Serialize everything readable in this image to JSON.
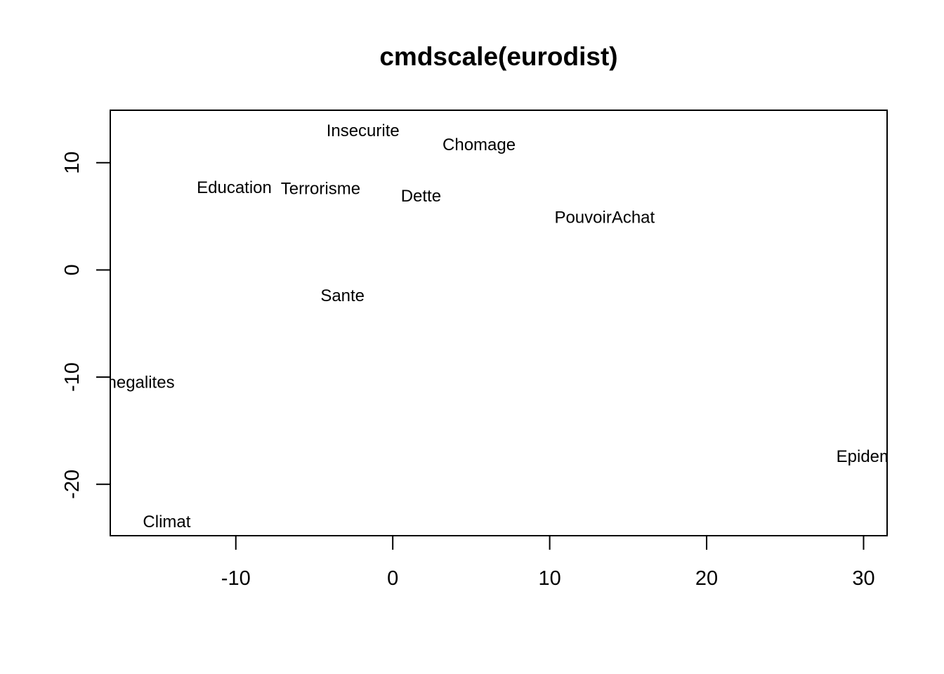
{
  "chart_data": {
    "type": "scatter",
    "title": "cmdscale(eurodist)",
    "xlabel": "",
    "ylabel": "",
    "xlim": [
      -18,
      31.5
    ],
    "ylim": [
      -24.8,
      14.9
    ],
    "x_ticks": [
      -10,
      0,
      10,
      20,
      30
    ],
    "x_tick_labels": [
      "-10",
      "0",
      "10",
      "20",
      "30"
    ],
    "y_ticks": [
      -20,
      -10,
      0,
      10
    ],
    "y_tick_labels": [
      "-20",
      "-10",
      "0",
      "10"
    ],
    "markers": "text",
    "points": [
      {
        "label": "Insecurite",
        "x": -1.9,
        "y": 13.0
      },
      {
        "label": "Chomage",
        "x": 5.5,
        "y": 11.7
      },
      {
        "label": "Education",
        "x": -10.1,
        "y": 7.7
      },
      {
        "label": "Terrorisme",
        "x": -4.6,
        "y": 7.6
      },
      {
        "label": "Dette",
        "x": 1.8,
        "y": 6.9
      },
      {
        "label": "PouvoirAchat",
        "x": 13.5,
        "y": 4.9
      },
      {
        "label": "Sante",
        "x": -3.2,
        "y": -2.4
      },
      {
        "label": "Inegalites",
        "x": -16.2,
        "y": -10.5
      },
      {
        "label": "Epidemie",
        "x": 30.5,
        "y": -17.4
      },
      {
        "label": "Climat",
        "x": -14.4,
        "y": -23.5
      }
    ],
    "grid": false,
    "legend": "none"
  }
}
